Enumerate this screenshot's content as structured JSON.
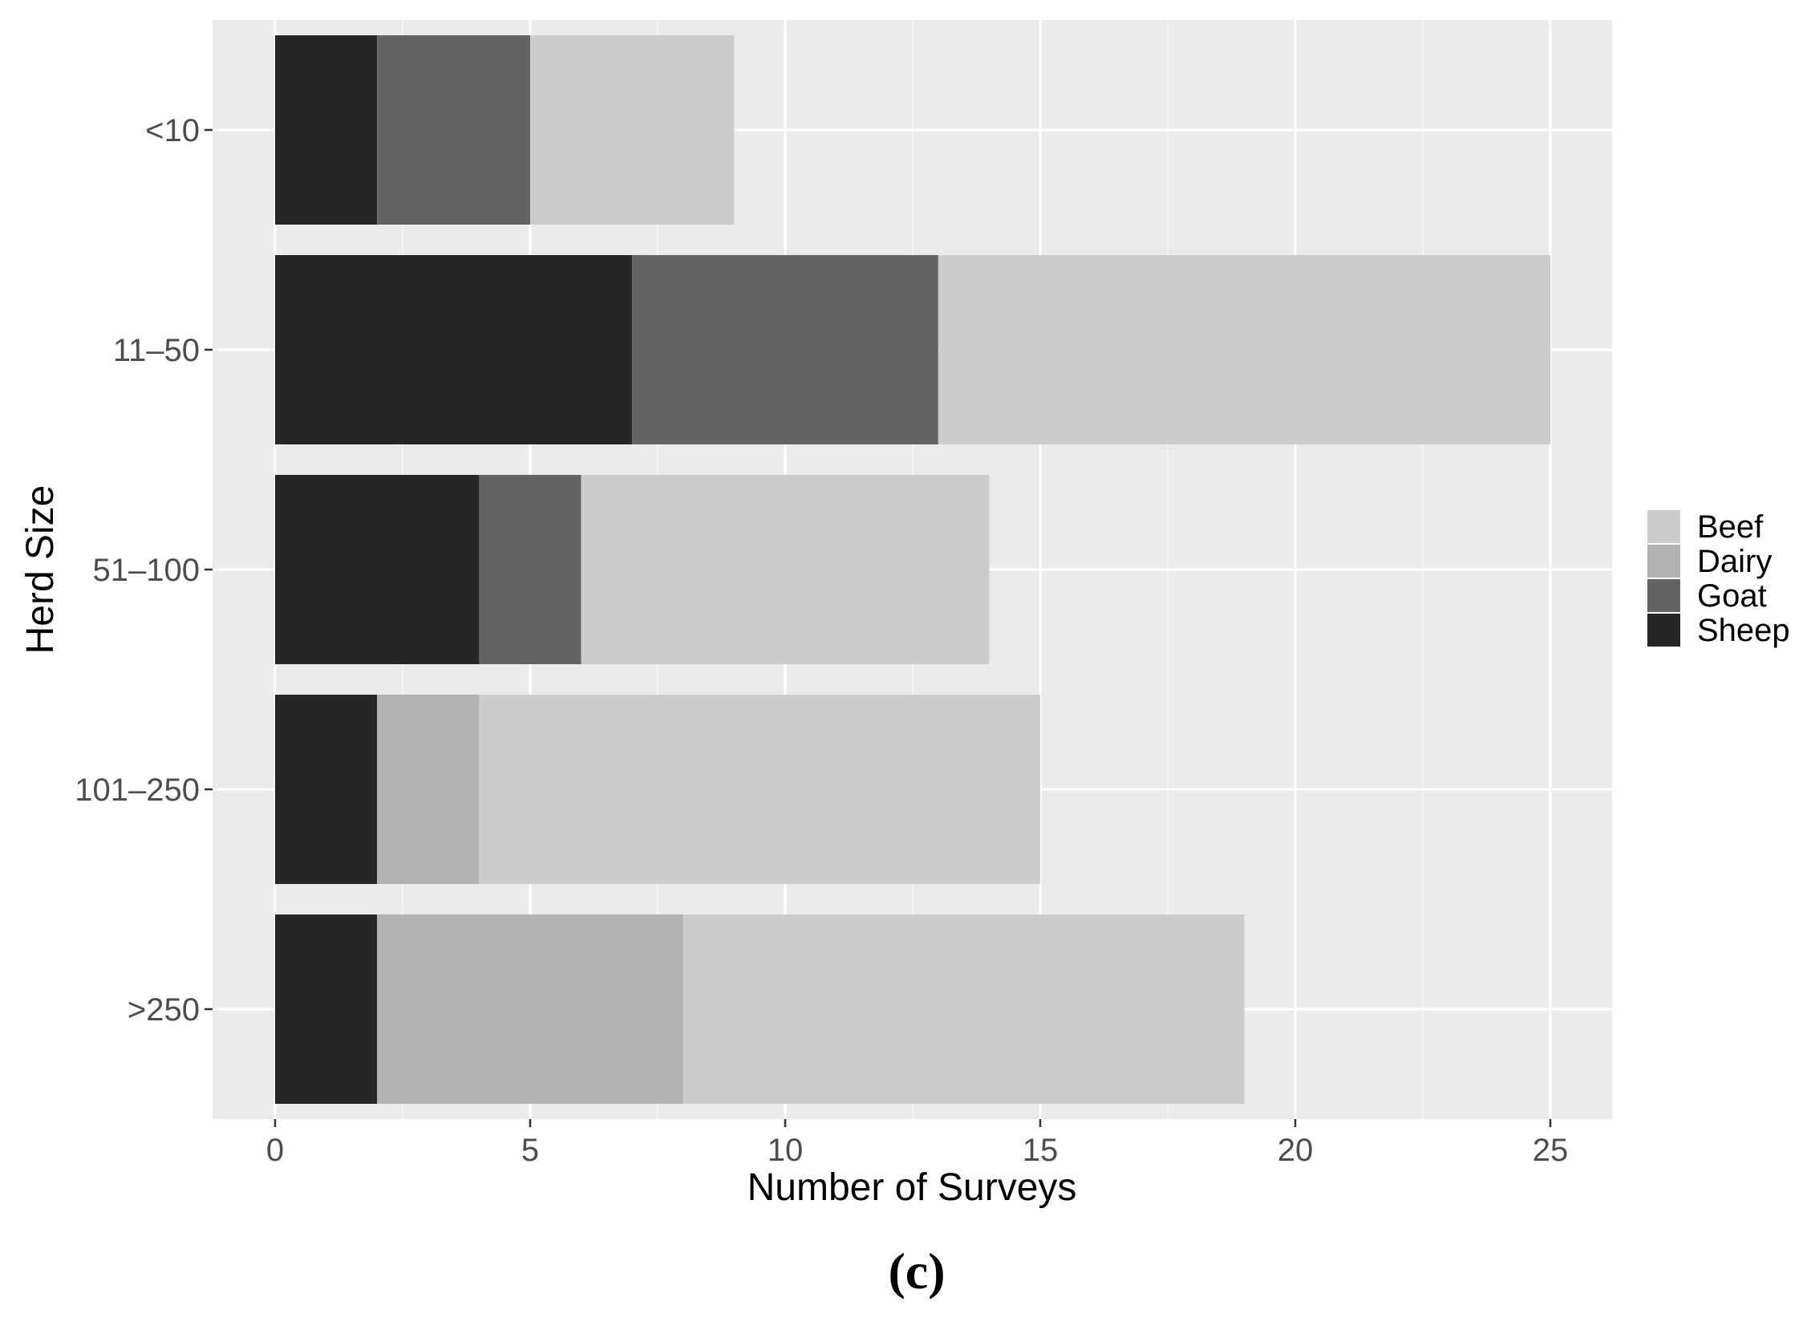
{
  "chart_data": {
    "type": "bar",
    "orientation": "horizontal",
    "stacked": true,
    "categories": [
      "<10",
      "11–50",
      "51–100",
      "101–250",
      ">250"
    ],
    "series": [
      {
        "name": "Sheep",
        "values": [
          2,
          7,
          4,
          2,
          2
        ],
        "color": "#262626"
      },
      {
        "name": "Goat",
        "values": [
          3,
          6,
          2,
          0,
          0
        ],
        "color": "#636363"
      },
      {
        "name": "Dairy",
        "values": [
          0,
          0,
          0,
          2,
          6
        ],
        "color": "#b2b2b2"
      },
      {
        "name": "Beef",
        "values": [
          4,
          12,
          8,
          11,
          11
        ],
        "color": "#cccccc"
      }
    ],
    "legend_order": [
      "Beef",
      "Dairy",
      "Goat",
      "Sheep"
    ],
    "legend_position": "right",
    "xlabel": "Number of Surveys",
    "ylabel": "Herd Size",
    "xlim": [
      -3,
      65.6
    ],
    "xticks": [
      0,
      5,
      10,
      15,
      20,
      25
    ],
    "grid": true,
    "panel_background": "#ebebeb"
  },
  "caption": "(c)"
}
